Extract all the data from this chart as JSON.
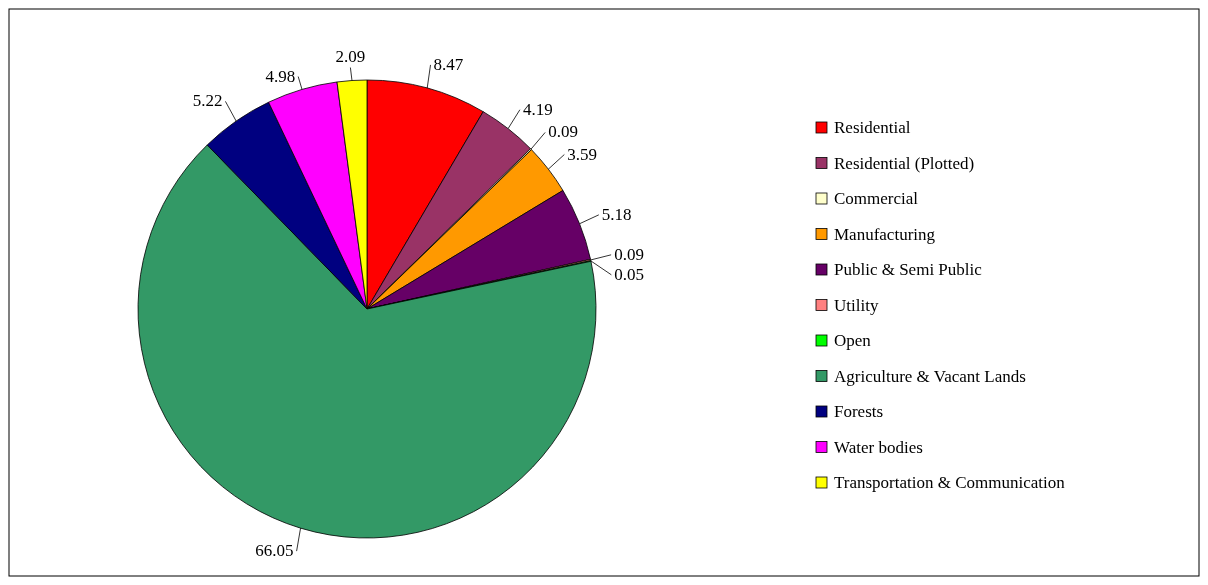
{
  "chart_data": {
    "type": "pie",
    "categories": [
      "Residential",
      "Residential (Plotted)",
      "Commercial",
      "Manufacturing",
      "Public & Semi Public",
      "Utility",
      "Open",
      "Agriculture & Vacant Lands",
      "Forests",
      "Water bodies",
      "Transportation & Communication"
    ],
    "values": [
      8.47,
      4.19,
      0.09,
      3.59,
      5.18,
      0.09,
      0.05,
      66.05,
      5.22,
      4.98,
      2.09
    ],
    "colors": [
      "#ff0000",
      "#993366",
      "#ffffcc",
      "#ff9900",
      "#660066",
      "#ff8080",
      "#00ff00",
      "#339966",
      "#000080",
      "#ff00ff",
      "#ffff00"
    ],
    "data_labels": true,
    "legend": "right"
  }
}
